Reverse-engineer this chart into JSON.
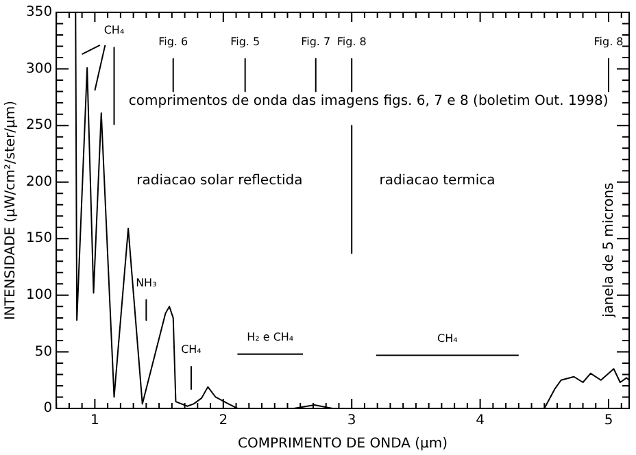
{
  "chart_data": {
    "type": "line",
    "xlabel": "COMPRIMENTO DE ONDA (μm)",
    "ylabel": "INTENSIDADE (μW/cm²/ster/μm)",
    "xlim": [
      0.7,
      5.16
    ],
    "xticks": [
      {
        "value": 0.7,
        "label": null
      },
      {
        "value": 0.8,
        "label": null
      },
      {
        "value": 0.9,
        "label": null
      },
      1,
      {
        "value": 1.1,
        "label": null
      },
      {
        "value": 1.2,
        "label": null
      },
      {
        "value": 1.3,
        "label": null
      },
      {
        "value": 1.4,
        "label": null
      },
      {
        "value": 1.5,
        "label": null
      },
      {
        "value": 1.6,
        "label": null
      },
      {
        "value": 1.7,
        "label": null
      },
      {
        "value": 1.8,
        "label": null
      },
      {
        "value": 1.9,
        "label": null
      },
      2,
      {
        "value": 2.1,
        "label": null
      },
      {
        "value": 2.2,
        "label": null
      },
      {
        "value": 2.3,
        "label": null
      },
      {
        "value": 2.4,
        "label": null
      },
      {
        "value": 2.5,
        "label": null
      },
      {
        "value": 2.6,
        "label": null
      },
      {
        "value": 2.7,
        "label": null
      },
      {
        "value": 2.8,
        "label": null
      },
      {
        "value": 2.9,
        "label": null
      },
      3,
      {
        "value": 3.1,
        "label": null
      },
      {
        "value": 3.2,
        "label": null
      },
      {
        "value": 3.3,
        "label": null
      },
      {
        "value": 3.4,
        "label": null
      },
      {
        "value": 3.5,
        "label": null
      },
      {
        "value": 3.6,
        "label": null
      },
      {
        "value": 3.7,
        "label": null
      },
      {
        "value": 3.8,
        "label": null
      },
      {
        "value": 3.9,
        "label": null
      },
      4,
      {
        "value": 4.1,
        "label": null
      },
      {
        "value": 4.2,
        "label": null
      },
      {
        "value": 4.3,
        "label": null
      },
      {
        "value": 4.4,
        "label": null
      },
      {
        "value": 4.5,
        "label": null
      },
      {
        "value": 4.6,
        "label": null
      },
      {
        "value": 4.7,
        "label": null
      },
      {
        "value": 4.8,
        "label": null
      },
      {
        "value": 4.9,
        "label": null
      },
      5,
      {
        "value": 5.1,
        "label": null
      }
    ],
    "ylim": [
      0,
      350
    ],
    "yticks": [
      0,
      {
        "value": 10,
        "label": null
      },
      {
        "value": 20,
        "label": null
      },
      {
        "value": 30,
        "label": null
      },
      {
        "value": 40,
        "label": null
      },
      50,
      {
        "value": 60,
        "label": null
      },
      {
        "value": 70,
        "label": null
      },
      {
        "value": 80,
        "label": null
      },
      {
        "value": 90,
        "label": null
      },
      100,
      {
        "value": 110,
        "label": null
      },
      {
        "value": 120,
        "label": null
      },
      {
        "value": 130,
        "label": null
      },
      {
        "value": 140,
        "label": null
      },
      150,
      {
        "value": 160,
        "label": null
      },
      {
        "value": 170,
        "label": null
      },
      {
        "value": 180,
        "label": null
      },
      {
        "value": 190,
        "label": null
      },
      200,
      {
        "value": 210,
        "label": null
      },
      {
        "value": 220,
        "label": null
      },
      {
        "value": 230,
        "label": null
      },
      {
        "value": 240,
        "label": null
      },
      250,
      {
        "value": 260,
        "label": null
      },
      {
        "value": 270,
        "label": null
      },
      {
        "value": 280,
        "label": null
      },
      {
        "value": 290,
        "label": null
      },
      300,
      {
        "value": 310,
        "label": null
      },
      {
        "value": 320,
        "label": null
      },
      {
        "value": 330,
        "label": null
      },
      {
        "value": 340,
        "label": null
      },
      350
    ],
    "grid": false,
    "legend": "top",
    "marker": "none",
    "series": [
      {
        "color": "#000000",
        "x": [
          0.85,
          0.86,
          0.94,
          0.99,
          1.05,
          1.15,
          1.26,
          1.37,
          1.55,
          1.58,
          1.61,
          1.63,
          1.72,
          1.77,
          1.83,
          1.88,
          1.94,
          2.04,
          2.11,
          2.55,
          2.71,
          2.85,
          4.5,
          4.58,
          4.63,
          4.73,
          4.8,
          4.86,
          4.94,
          5.04,
          5.09,
          5.14,
          5.16
        ],
        "values": [
          350,
          78,
          301,
          102,
          261,
          10,
          159,
          4,
          84,
          90,
          80,
          6,
          2,
          4,
          9,
          19,
          10,
          4,
          0,
          0,
          3,
          0,
          0,
          17,
          25,
          28,
          23,
          31,
          25,
          35,
          23,
          27,
          25
        ]
      },
      {
        "color": "#000000",
        "x": [
          0.9,
          1.04
        ],
        "values": [
          313,
          321
        ]
      },
      {
        "color": "#000000",
        "x": [
          1.0,
          1.08
        ],
        "values": [
          281,
          321
        ]
      },
      {
        "name": "CH₄",
        "color": "#000000",
        "x": [
          1.15,
          1.15
        ],
        "values": [
          319,
          251
        ]
      },
      {
        "name": "Fig. 6",
        "color": "#000000",
        "x": [
          1.61,
          1.61
        ],
        "values": [
          309,
          280
        ]
      },
      {
        "name": "Fig. 5",
        "color": "#000000",
        "x": [
          2.17,
          2.17
        ],
        "values": [
          309,
          280
        ]
      },
      {
        "name": "Fig. 7",
        "color": "#000000",
        "x": [
          2.72,
          2.72
        ],
        "values": [
          309,
          280
        ]
      },
      {
        "name": "Fig. 8",
        "color": "#000000",
        "x": [
          3.0,
          3.0
        ],
        "values": [
          309,
          280
        ]
      },
      {
        "name": "Fig. 8",
        "color": "#000000",
        "x": [
          5.0,
          5.0
        ],
        "values": [
          309,
          280
        ]
      },
      {
        "color": "#000000",
        "x": [
          3.0,
          3.0
        ],
        "values": [
          250,
          137
        ]
      },
      {
        "name": "NH₃",
        "color": "#000000",
        "x": [
          1.4,
          1.4
        ],
        "values": [
          96,
          78
        ]
      },
      {
        "name": "CH₄",
        "color": "#000000",
        "x": [
          1.75,
          1.75
        ],
        "values": [
          37,
          17
        ]
      },
      {
        "name": "H₂ e CH₄",
        "color": "#000000",
        "x": [
          2.11,
          2.62
        ],
        "values": [
          48,
          48
        ]
      },
      {
        "name": "CH₄",
        "color": "#000000",
        "x": [
          3.19,
          4.3
        ],
        "values": [
          47,
          47
        ]
      }
    ],
    "annotations": [
      "comprimentos de onda das imagens figs. 6, 7 e 8 (boletim Out. 1998)",
      "radiacao solar reflectida",
      "radiacao termica",
      "janela de 5 microns"
    ]
  }
}
